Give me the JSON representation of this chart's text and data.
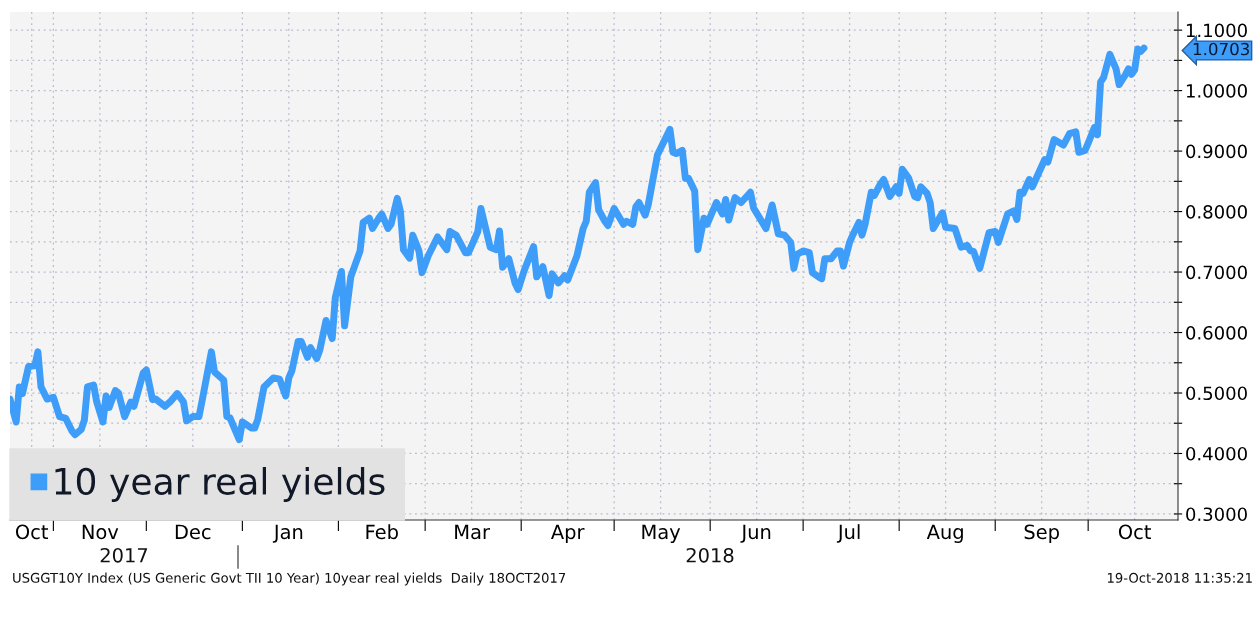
{
  "chart_data": {
    "type": "line",
    "x": [
      "2017-10-18",
      "2017-10-20",
      "2017-10-21",
      "2017-10-22",
      "2017-10-24",
      "2017-10-26",
      "2017-10-27",
      "2017-10-28",
      "2017-10-30",
      "2017-11-01",
      "2017-11-03",
      "2017-11-05",
      "2017-11-07",
      "2017-11-08",
      "2017-11-10",
      "2017-11-11",
      "2017-11-12",
      "2017-11-14",
      "2017-11-15",
      "2017-11-17",
      "2017-11-18",
      "2017-11-19",
      "2017-11-21",
      "2017-11-22",
      "2017-11-24",
      "2017-11-26",
      "2017-11-27",
      "2017-11-30",
      "2017-12-01",
      "2017-12-03",
      "2017-12-04",
      "2017-12-07",
      "2017-12-09",
      "2017-12-11",
      "2017-12-13",
      "2017-12-14",
      "2017-12-16",
      "2017-12-18",
      "2017-12-19",
      "2017-12-22",
      "2017-12-23",
      "2017-12-26",
      "2017-12-27",
      "2017-12-28",
      "2017-12-31",
      "2018-01-01",
      "2018-01-04",
      "2018-01-05",
      "2018-01-06",
      "2018-01-08",
      "2018-01-11",
      "2018-01-13",
      "2018-01-15",
      "2018-01-16",
      "2018-01-17",
      "2018-01-19",
      "2018-01-20",
      "2018-01-22",
      "2018-01-23",
      "2018-01-25",
      "2018-01-26",
      "2018-01-28",
      "2018-01-30",
      "2018-01-31",
      "2018-02-02",
      "2018-02-03",
      "2018-02-05",
      "2018-02-08",
      "2018-02-09",
      "2018-02-11",
      "2018-02-12",
      "2018-02-14",
      "2018-02-15",
      "2018-02-17",
      "2018-02-18",
      "2018-02-20",
      "2018-02-21",
      "2018-02-22",
      "2018-02-24",
      "2018-02-25",
      "2018-02-27",
      "2018-02-28",
      "2018-03-02",
      "2018-03-05",
      "2018-03-08",
      "2018-03-09",
      "2018-03-11",
      "2018-03-14",
      "2018-03-15",
      "2018-03-18",
      "2018-03-19",
      "2018-03-22",
      "2018-03-24",
      "2018-03-25",
      "2018-03-26",
      "2018-03-28",
      "2018-03-30",
      "2018-03-31",
      "2018-04-02",
      "2018-04-05",
      "2018-04-06",
      "2018-04-08",
      "2018-04-10",
      "2018-04-11",
      "2018-04-13",
      "2018-04-15",
      "2018-04-16",
      "2018-04-19",
      "2018-04-21",
      "2018-04-22",
      "2018-04-23",
      "2018-04-25",
      "2018-04-26",
      "2018-04-28",
      "2018-04-29",
      "2018-05-01",
      "2018-05-04",
      "2018-05-05",
      "2018-05-07",
      "2018-05-08",
      "2018-05-09",
      "2018-05-11",
      "2018-05-12",
      "2018-05-15",
      "2018-05-19",
      "2018-05-20",
      "2018-05-21",
      "2018-05-23",
      "2018-05-24",
      "2018-05-25",
      "2018-05-27",
      "2018-05-28",
      "2018-05-30",
      "2018-05-31",
      "2018-06-03",
      "2018-06-05",
      "2018-06-06",
      "2018-06-07",
      "2018-06-09",
      "2018-06-11",
      "2018-06-14",
      "2018-06-15",
      "2018-06-19",
      "2018-06-21",
      "2018-06-23",
      "2018-06-25",
      "2018-06-27",
      "2018-06-28",
      "2018-06-29",
      "2018-07-01",
      "2018-07-03",
      "2018-07-04",
      "2018-07-06",
      "2018-07-07",
      "2018-07-08",
      "2018-07-10",
      "2018-07-12",
      "2018-07-13",
      "2018-07-14",
      "2018-07-16",
      "2018-07-17",
      "2018-07-19",
      "2018-07-20",
      "2018-07-21",
      "2018-07-23",
      "2018-07-24",
      "2018-07-26",
      "2018-07-27",
      "2018-07-29",
      "2018-07-31",
      "2018-08-01",
      "2018-08-02",
      "2018-08-04",
      "2018-08-06",
      "2018-08-07",
      "2018-08-08",
      "2018-08-10",
      "2018-08-11",
      "2018-08-12",
      "2018-08-15",
      "2018-08-16",
      "2018-08-19",
      "2018-08-21",
      "2018-08-23",
      "2018-08-24",
      "2018-08-25",
      "2018-08-27",
      "2018-08-30",
      "2018-09-01",
      "2018-09-02",
      "2018-09-05",
      "2018-09-07",
      "2018-09-08",
      "2018-09-09",
      "2018-09-10",
      "2018-09-12",
      "2018-09-13",
      "2018-09-17",
      "2018-09-18",
      "2018-09-20",
      "2018-09-23",
      "2018-09-25",
      "2018-09-27",
      "2018-09-28",
      "2018-09-30",
      "2018-10-01",
      "2018-10-03",
      "2018-10-04",
      "2018-10-05",
      "2018-10-06",
      "2018-10-08",
      "2018-10-10",
      "2018-10-11",
      "2018-10-13",
      "2018-10-14",
      "2018-10-15",
      "2018-10-16",
      "2018-10-17",
      "2018-10-18",
      "2018-10-19"
    ],
    "series": [
      {
        "name": "10 year real yields",
        "color": "#3d9df8",
        "values": [
          0.49,
          0.452,
          0.51,
          0.499,
          0.544,
          0.545,
          0.568,
          0.51,
          0.49,
          0.493,
          0.461,
          0.458,
          0.437,
          0.431,
          0.44,
          0.455,
          0.51,
          0.513,
          0.485,
          0.452,
          0.495,
          0.476,
          0.504,
          0.5,
          0.461,
          0.485,
          0.478,
          0.533,
          0.538,
          0.489,
          0.49,
          0.478,
          0.487,
          0.499,
          0.485,
          0.454,
          0.461,
          0.461,
          0.487,
          0.568,
          0.535,
          0.521,
          0.461,
          0.459,
          0.423,
          0.452,
          0.442,
          0.442,
          0.457,
          0.51,
          0.525,
          0.523,
          0.495,
          0.525,
          0.537,
          0.585,
          0.585,
          0.559,
          0.575,
          0.557,
          0.571,
          0.62,
          0.59,
          0.658,
          0.701,
          0.611,
          0.692,
          0.735,
          0.782,
          0.789,
          0.772,
          0.789,
          0.796,
          0.772,
          0.779,
          0.822,
          0.801,
          0.737,
          0.723,
          0.761,
          0.735,
          0.699,
          0.727,
          0.758,
          0.737,
          0.767,
          0.761,
          0.732,
          0.732,
          0.767,
          0.805,
          0.741,
          0.737,
          0.768,
          0.708,
          0.722,
          0.682,
          0.671,
          0.703,
          0.742,
          0.692,
          0.709,
          0.661,
          0.697,
          0.682,
          0.694,
          0.687,
          0.727,
          0.772,
          0.784,
          0.832,
          0.848,
          0.803,
          0.784,
          0.777,
          0.805,
          0.779,
          0.784,
          0.779,
          0.808,
          0.815,
          0.794,
          0.811,
          0.894,
          0.936,
          0.898,
          0.896,
          0.901,
          0.855,
          0.855,
          0.834,
          0.737,
          0.789,
          0.779,
          0.815,
          0.796,
          0.82,
          0.786,
          0.823,
          0.815,
          0.832,
          0.806,
          0.772,
          0.811,
          0.763,
          0.761,
          0.749,
          0.706,
          0.729,
          0.735,
          0.732,
          0.699,
          0.692,
          0.689,
          0.722,
          0.722,
          0.735,
          0.735,
          0.71,
          0.749,
          0.761,
          0.782,
          0.761,
          0.779,
          0.832,
          0.827,
          0.846,
          0.853,
          0.825,
          0.841,
          0.83,
          0.87,
          0.856,
          0.825,
          0.823,
          0.841,
          0.83,
          0.815,
          0.772,
          0.798,
          0.774,
          0.772,
          0.741,
          0.744,
          0.735,
          0.734,
          0.706,
          0.765,
          0.767,
          0.749,
          0.796,
          0.801,
          0.787,
          0.832,
          0.83,
          0.853,
          0.841,
          0.886,
          0.882,
          0.919,
          0.91,
          0.929,
          0.932,
          0.898,
          0.901,
          0.913,
          0.939,
          0.927,
          1.014,
          1.022,
          1.06,
          1.036,
          1.01,
          1.026,
          1.036,
          1.027,
          1.034,
          1.069,
          1.065,
          1.0703
        ]
      }
    ],
    "xlim": [
      "2017-10-18",
      "2018-10-30"
    ],
    "xticks": [
      {
        "value": "2017-10-25",
        "label": "Oct"
      },
      {
        "value": "2017-11-01",
        "label": null
      },
      {
        "value": "2017-11-16",
        "label": "Nov"
      },
      {
        "value": "2017-12-01",
        "label": null
      },
      {
        "value": "2017-12-16",
        "label": "Dec"
      },
      {
        "value": "2018-01-01",
        "label": null
      },
      {
        "value": "2018-01-16",
        "label": "Jan"
      },
      {
        "value": "2018-02-01",
        "label": null
      },
      {
        "value": "2018-02-15",
        "label": "Feb"
      },
      {
        "value": "2018-03-01",
        "label": null
      },
      {
        "value": "2018-03-16",
        "label": "Mar"
      },
      {
        "value": "2018-04-01",
        "label": null
      },
      {
        "value": "2018-04-16",
        "label": "Apr"
      },
      {
        "value": "2018-05-01",
        "label": null
      },
      {
        "value": "2018-05-16",
        "label": "May"
      },
      {
        "value": "2018-06-01",
        "label": null
      },
      {
        "value": "2018-06-16",
        "label": "Jun"
      },
      {
        "value": "2018-07-01",
        "label": null
      },
      {
        "value": "2018-07-16",
        "label": "Jul"
      },
      {
        "value": "2018-08-01",
        "label": null
      },
      {
        "value": "2018-08-16",
        "label": "Aug"
      },
      {
        "value": "2018-09-01",
        "label": null
      },
      {
        "value": "2018-09-16",
        "label": "Sep"
      },
      {
        "value": "2018-10-01",
        "label": null
      },
      {
        "value": "2018-10-16",
        "label": "Oct"
      }
    ],
    "ylim": [
      0.29,
      1.13
    ],
    "yticks": [
      {
        "value": 0.3,
        "label": "0.3000"
      },
      {
        "value": 0.35,
        "label": null
      },
      {
        "value": 0.4,
        "label": "0.4000"
      },
      {
        "value": 0.45,
        "label": null
      },
      {
        "value": 0.5,
        "label": "0.5000"
      },
      {
        "value": 0.55,
        "label": null
      },
      {
        "value": 0.6,
        "label": "0.6000"
      },
      {
        "value": 0.65,
        "label": null
      },
      {
        "value": 0.7,
        "label": "0.7000"
      },
      {
        "value": 0.75,
        "label": null
      },
      {
        "value": 0.8,
        "label": "0.8000"
      },
      {
        "value": 0.85,
        "label": null
      },
      {
        "value": 0.9,
        "label": "0.9000"
      },
      {
        "value": 0.95,
        "label": null
      },
      {
        "value": 1.0,
        "label": "1.0000"
      },
      {
        "value": 1.05,
        "label": null
      },
      {
        "value": 1.1,
        "label": "1.1000"
      }
    ],
    "grid": true,
    "legend": "bottom left",
    "annotations": [
      {
        "text": "1.0703",
        "x": "2018-10-19",
        "y": 1.0703
      },
      "2017",
      "2018",
      "USGGT10Y Index (US Generic Govt TII 10 Year) 10year real yields  Daily 18OCT2017",
      "19-Oct-2018 11:35:21"
    ]
  }
}
